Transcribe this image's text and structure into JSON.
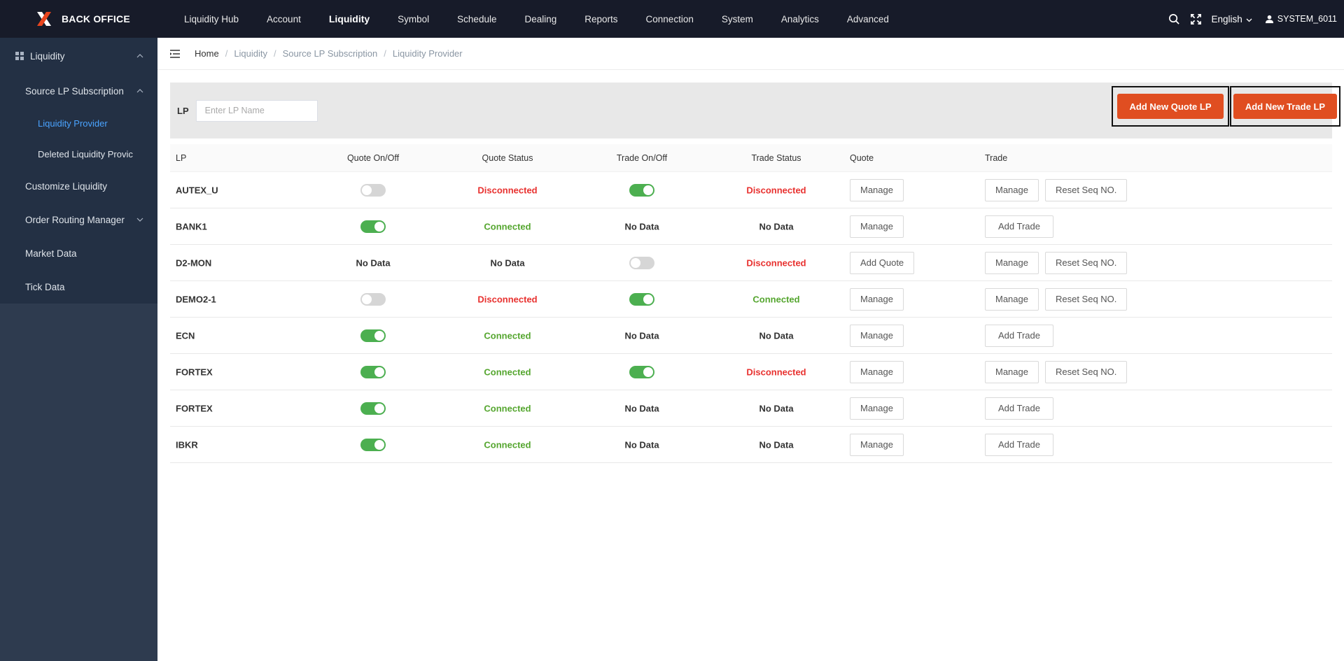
{
  "header": {
    "brand": "BACK OFFICE",
    "nav": [
      "Liquidity Hub",
      "Account",
      "Liquidity",
      "Symbol",
      "Schedule",
      "Dealing",
      "Reports",
      "Connection",
      "System",
      "Analytics",
      "Advanced"
    ],
    "active_nav": "Liquidity",
    "language": "English",
    "user": "SYSTEM_6011"
  },
  "sidebar": {
    "group": "Liquidity",
    "subgroup": "Source LP Subscription",
    "sub_items": [
      "Liquidity Provider",
      "Deleted Liquidity Provic"
    ],
    "items": [
      "Customize Liquidity",
      "Order Routing Manager",
      "Market Data",
      "Tick Data"
    ]
  },
  "breadcrumb": [
    "Home",
    "Liquidity",
    "Source LP Subscription",
    "Liquidity Provider"
  ],
  "filter": {
    "label": "LP",
    "placeholder": "Enter LP Name",
    "add_quote_label": "Add New Quote LP",
    "add_trade_label": "Add New Trade LP"
  },
  "table": {
    "columns": [
      "LP",
      "Quote On/Off",
      "Quote Status",
      "Trade On/Off",
      "Trade Status",
      "Quote",
      "Trade"
    ],
    "rows": [
      {
        "lp": "AUTEX_U",
        "quote_toggle": "off",
        "quote_status": "Disconnected",
        "trade_toggle": "on",
        "trade_status": "Disconnected",
        "quote_btn": "Manage",
        "trade_btns": [
          "Manage",
          "Reset Seq NO."
        ]
      },
      {
        "lp": "BANK1",
        "quote_toggle": "on",
        "quote_status": "Connected",
        "trade_toggle": "No Data",
        "trade_status": "No Data",
        "quote_btn": "Manage",
        "trade_btns": [
          "Add Trade"
        ]
      },
      {
        "lp": "D2-MON",
        "quote_toggle": "No Data",
        "quote_status": "No Data",
        "trade_toggle": "off",
        "trade_status": "Disconnected",
        "quote_btn": "Add Quote",
        "trade_btns": [
          "Manage",
          "Reset Seq NO."
        ]
      },
      {
        "lp": "DEMO2-1",
        "quote_toggle": "off",
        "quote_status": "Disconnected",
        "trade_toggle": "on",
        "trade_status": "Connected",
        "quote_btn": "Manage",
        "trade_btns": [
          "Manage",
          "Reset Seq NO."
        ]
      },
      {
        "lp": "ECN",
        "quote_toggle": "on",
        "quote_status": "Connected",
        "trade_toggle": "No Data",
        "trade_status": "No Data",
        "quote_btn": "Manage",
        "trade_btns": [
          "Add Trade"
        ]
      },
      {
        "lp": "FORTEX",
        "quote_toggle": "on",
        "quote_status": "Connected",
        "trade_toggle": "on",
        "trade_status": "Disconnected",
        "quote_btn": "Manage",
        "trade_btns": [
          "Manage",
          "Reset Seq NO."
        ]
      },
      {
        "lp": "FORTEX",
        "quote_toggle": "on",
        "quote_status": "Connected",
        "trade_toggle": "No Data",
        "trade_status": "No Data",
        "quote_btn": "Manage",
        "trade_btns": [
          "Add Trade"
        ]
      },
      {
        "lp": "IBKR",
        "quote_toggle": "on",
        "quote_status": "Connected",
        "trade_toggle": "No Data",
        "trade_status": "No Data",
        "quote_btn": "Manage",
        "trade_btns": [
          "Add Trade"
        ]
      }
    ]
  },
  "colors": {
    "topbar": "#171b29",
    "sidebar": "#2e3b4f",
    "accent_orange": "#e04e21",
    "connected": "#55a62f",
    "disconnected": "#e8312f",
    "toggle_on": "#4caf50",
    "active_link": "#4aa3ff"
  }
}
